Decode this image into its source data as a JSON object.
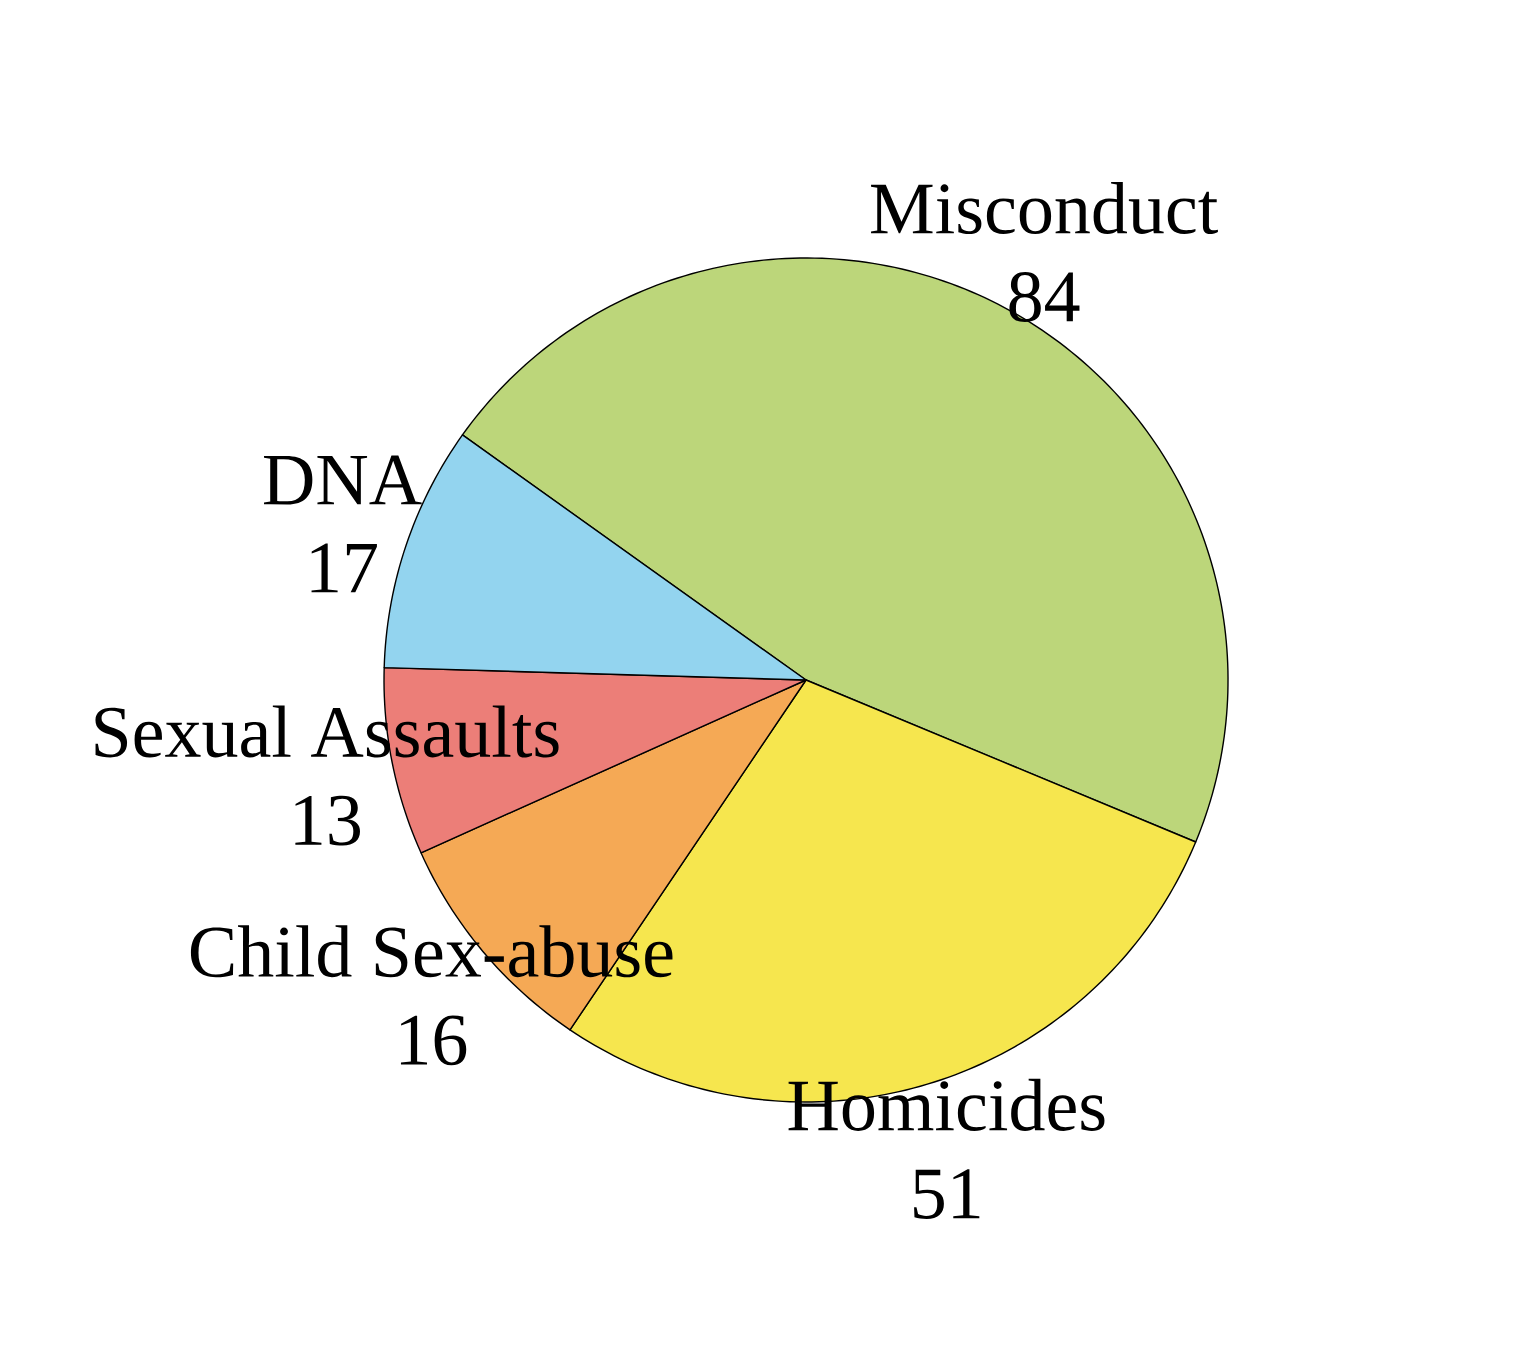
{
  "chart_data": {
    "type": "pie",
    "categories": [
      "Misconduct",
      "Homicides",
      "Child Sex-abuse",
      "Sexual Assaults",
      "DNA"
    ],
    "values": [
      84,
      51,
      16,
      13,
      17
    ],
    "colors": [
      "#bcd67a",
      "#f6e64e",
      "#f5a955",
      "#ec7e78",
      "#93d4ef"
    ],
    "data_labels": true
  }
}
